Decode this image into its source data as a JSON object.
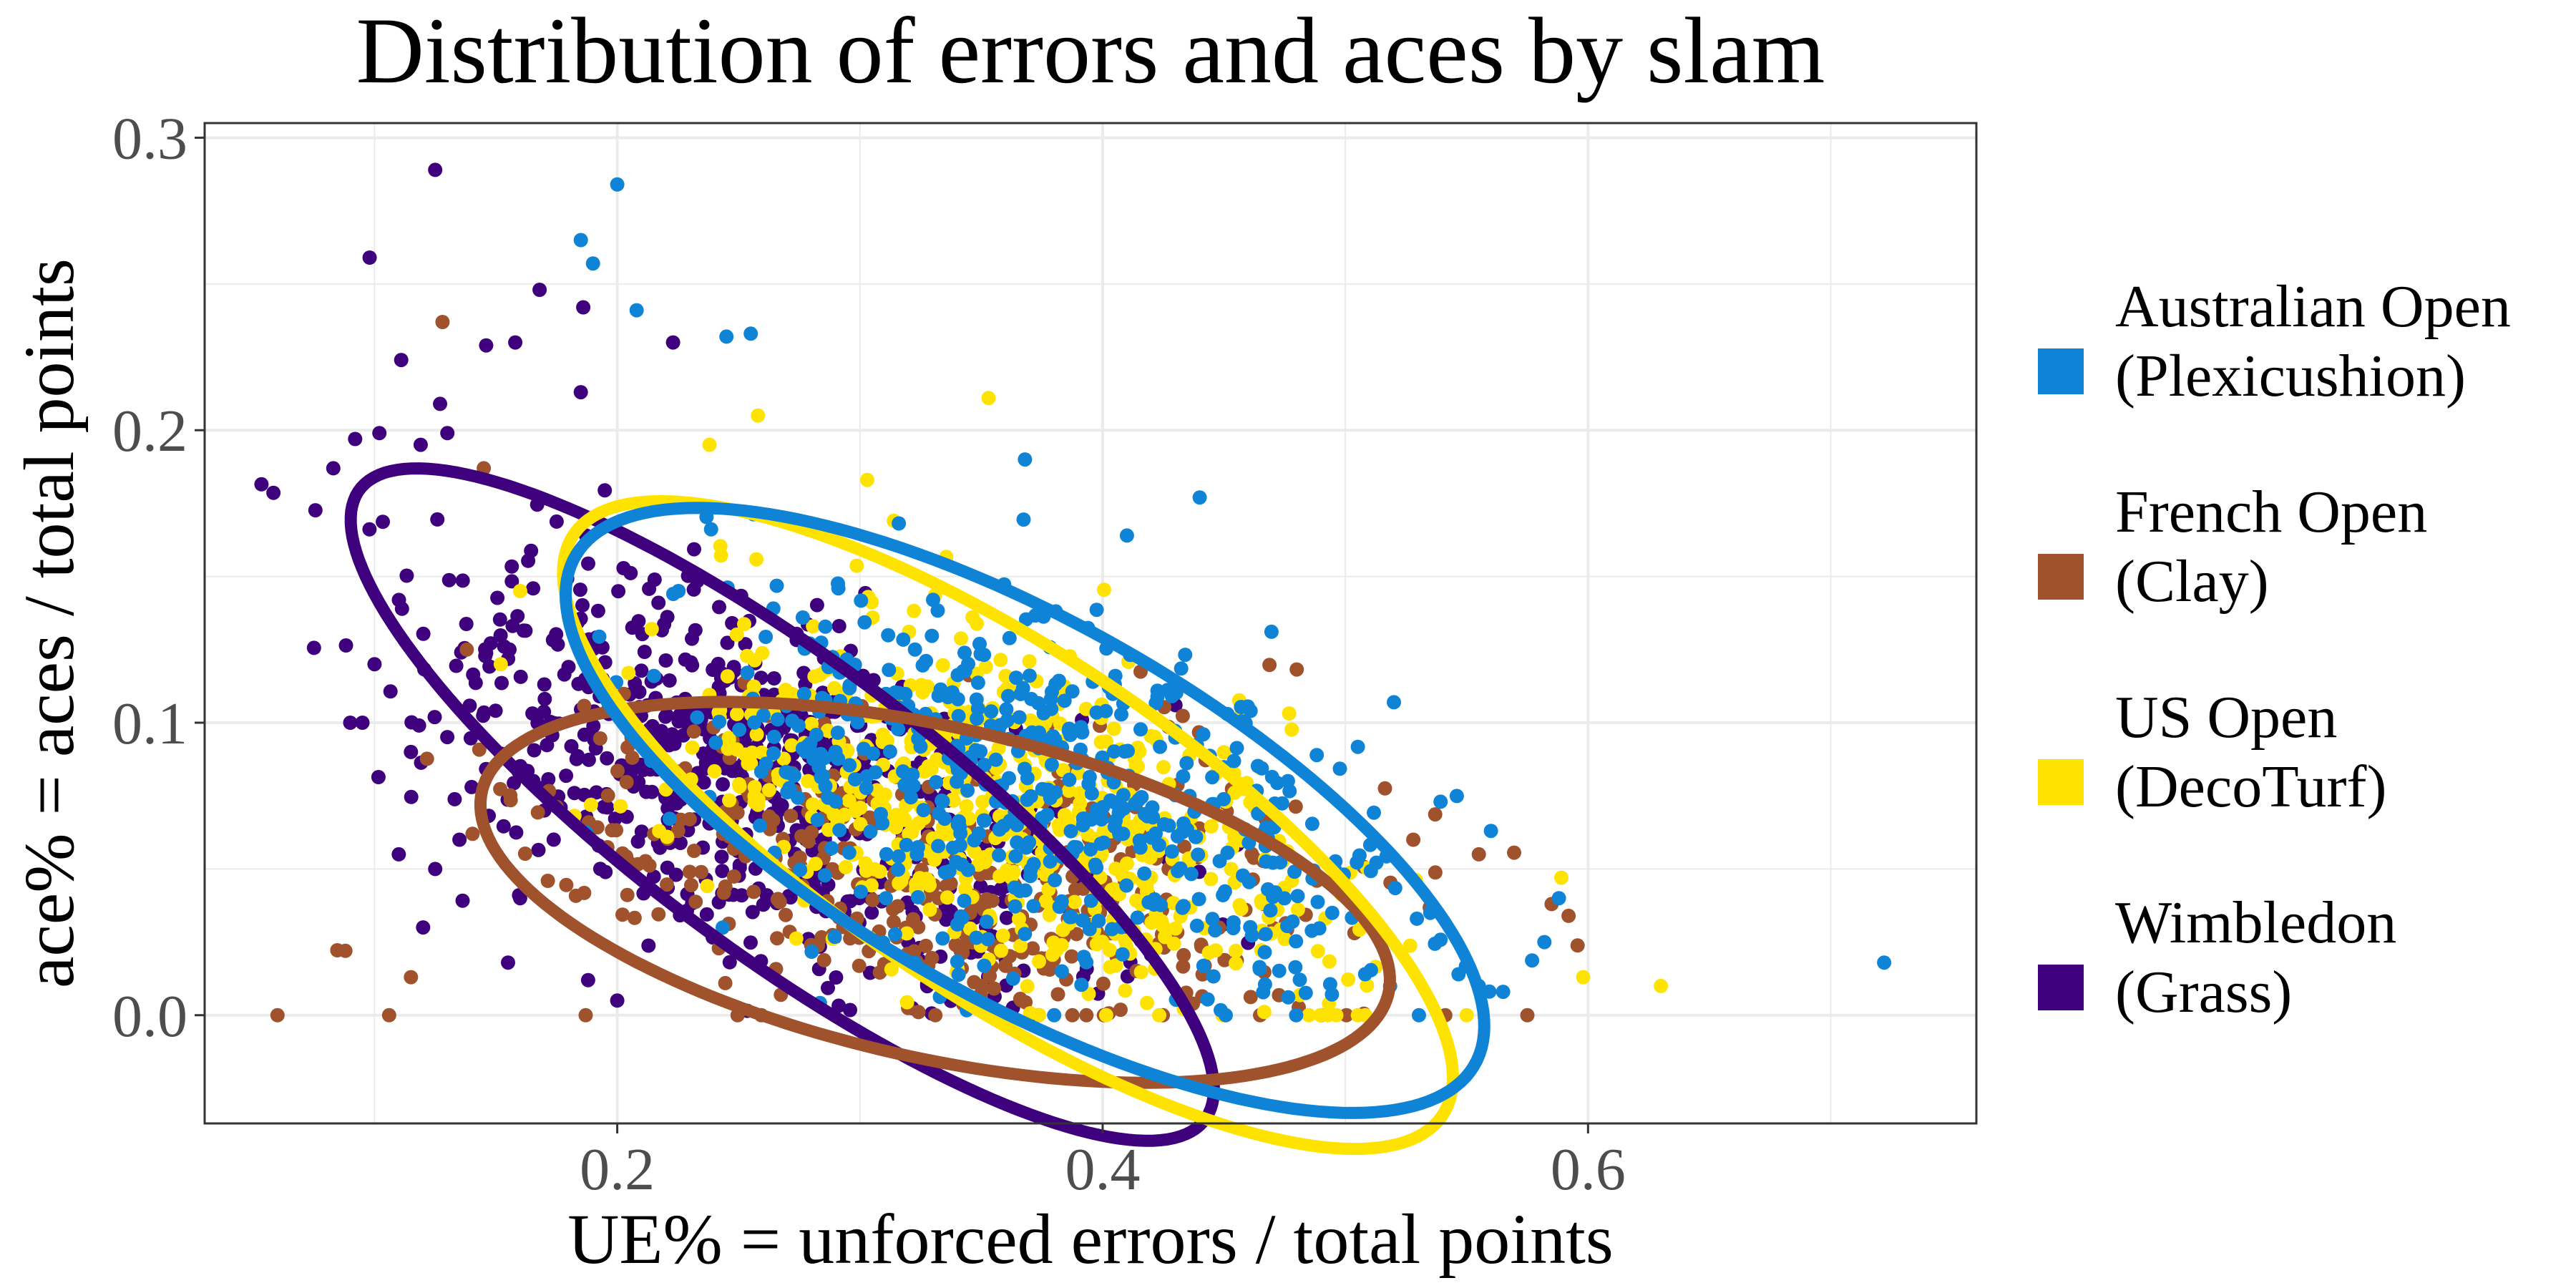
{
  "chart_data": {
    "type": "scatter",
    "title": "Distribution of errors and aces by slam",
    "xlabel": "UE% = unforced errors / total points",
    "ylabel": "ace% = aces / total points",
    "xlim": [
      0.03,
      0.76
    ],
    "ylim": [
      -0.037,
      0.305
    ],
    "x_ticks": [
      0.2,
      0.4,
      0.6
    ],
    "x_tick_labels": [
      "0.2",
      "0.4",
      "0.6"
    ],
    "y_ticks": [
      0.0,
      0.1,
      0.2,
      0.3
    ],
    "y_tick_labels": [
      "0.0",
      "0.1",
      "0.2",
      "0.3"
    ],
    "grid": true,
    "legend_position": "right",
    "series": [
      {
        "name": "Wimbledon (Grass)",
        "legend_lines": [
          "Wimbledon",
          "(Grass)"
        ],
        "color": "#3f007d",
        "ellipse": {
          "cx": 0.268,
          "cy": 0.072,
          "rx": 0.205,
          "ry": 0.053,
          "angle_deg": -31
        },
        "points": [
          [
            0.125,
            0.289
          ],
          [
            0.098,
            0.259
          ],
          [
            0.168,
            0.248
          ],
          [
            0.186,
            0.242
          ],
          [
            0.111,
            0.224
          ],
          [
            0.158,
            0.23
          ],
          [
            0.185,
            0.213
          ],
          [
            0.127,
            0.209
          ],
          [
            0.146,
            0.229
          ],
          [
            0.223,
            0.23
          ],
          [
            0.092,
            0.197
          ],
          [
            0.083,
            0.187
          ],
          [
            0.102,
            0.199
          ],
          [
            0.119,
            0.195
          ],
          [
            0.13,
            0.199
          ],
          [
            0.095,
            0.1
          ],
          [
            0.09,
            0.1
          ],
          [
            0.1,
            0.12
          ],
          [
            0.11,
            0.055
          ],
          [
            0.115,
            0.09
          ],
          [
            0.12,
            0.03
          ],
          [
            0.125,
            0.05
          ],
          [
            0.135,
            0.06
          ],
          [
            0.14,
            0.078
          ],
          [
            0.155,
            0.018
          ],
          [
            0.16,
            0.04
          ],
          [
            0.17,
            0.07
          ],
          [
            0.188,
            0.012
          ],
          [
            0.2,
            0.005
          ],
          [
            0.43,
            0.106
          ],
          [
            0.395,
            0.047
          ],
          [
            0.41,
            0.03
          ]
        ],
        "cloud": {
          "cx": 0.255,
          "cy": 0.083,
          "sx": 0.07,
          "sy": 0.037,
          "rho": -0.55,
          "n": 650,
          "seed": 41
        }
      },
      {
        "name": "French Open (Clay)",
        "legend_lines": [
          "French Open",
          "(Clay)"
        ],
        "color": "#a0522d",
        "ellipse": {
          "cx": 0.331,
          "cy": 0.042,
          "rx": 0.19,
          "ry": 0.057,
          "angle_deg": -10
        },
        "points": [
          [
            0.06,
            0.0
          ],
          [
            0.106,
            0.0
          ],
          [
            0.187,
            0.0
          ],
          [
            0.088,
            0.022
          ],
          [
            0.115,
            0.013
          ],
          [
            0.128,
            0.237
          ],
          [
            0.145,
            0.187
          ],
          [
            0.138,
            0.125
          ],
          [
            0.528,
            0.06
          ],
          [
            0.555,
            0.055
          ],
          [
            0.575,
            0.0
          ],
          [
            0.585,
            0.038
          ],
          [
            0.49,
            0.0
          ]
        ],
        "cloud": {
          "cx": 0.335,
          "cy": 0.048,
          "sx": 0.085,
          "sy": 0.03,
          "rho": -0.3,
          "n": 420,
          "seed": 7
        }
      },
      {
        "name": "US Open (DecoTurf)",
        "legend_lines": [
          "US Open",
          "(DecoTurf)"
        ],
        "color": "#ffe300",
        "ellipse": {
          "cx": 0.361,
          "cy": 0.065,
          "rx": 0.205,
          "ry": 0.062,
          "angle_deg": -28
        },
        "points": [
          [
            0.63,
            0.01
          ],
          [
            0.598,
            0.013
          ],
          [
            0.589,
            0.047
          ],
          [
            0.55,
            0.0
          ],
          [
            0.353,
            0.211
          ],
          [
            0.258,
            0.205
          ],
          [
            0.303,
            0.183
          ],
          [
            0.16,
            0.145
          ],
          [
            0.152,
            0.12
          ],
          [
            0.238,
            0.195
          ]
        ],
        "cloud": {
          "cx": 0.358,
          "cy": 0.068,
          "sx": 0.065,
          "sy": 0.035,
          "rho": -0.5,
          "n": 620,
          "seed": 93
        }
      },
      {
        "name": "Australian Open (Plexicushion)",
        "legend_lines": [
          "Australian Open",
          "(Plexicushion)"
        ],
        "color": "#0f84d6",
        "ellipse": {
          "cx": 0.368,
          "cy": 0.07,
          "rx": 0.205,
          "ry": 0.067,
          "angle_deg": -24
        },
        "points": [
          [
            0.722,
            0.018
          ],
          [
            0.2,
            0.284
          ],
          [
            0.185,
            0.265
          ],
          [
            0.19,
            0.257
          ],
          [
            0.208,
            0.241
          ],
          [
            0.255,
            0.233
          ],
          [
            0.245,
            0.232
          ],
          [
            0.44,
            0.177
          ],
          [
            0.368,
            0.19
          ],
          [
            0.41,
            0.164
          ],
          [
            0.56,
            0.063
          ],
          [
            0.582,
            0.025
          ],
          [
            0.565,
            0.008
          ],
          [
            0.588,
            0.04
          ],
          [
            0.52,
            0.107
          ],
          [
            0.555,
            0.01
          ],
          [
            0.535,
            0.035
          ]
        ],
        "cloud": {
          "cx": 0.375,
          "cy": 0.075,
          "sx": 0.07,
          "sy": 0.036,
          "rho": -0.45,
          "n": 560,
          "seed": 27
        }
      }
    ],
    "legend_order": [
      3,
      1,
      2,
      0
    ]
  }
}
